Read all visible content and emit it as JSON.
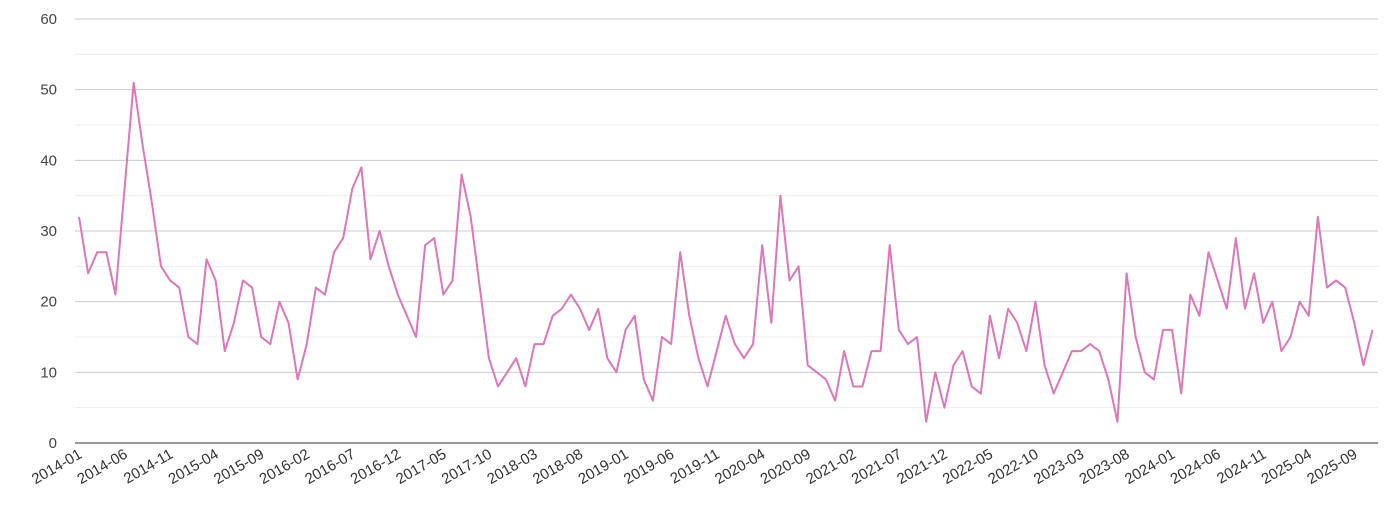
{
  "chart_data": {
    "type": "line",
    "title": "",
    "xlabel": "",
    "ylabel": "",
    "ylim": [
      0,
      60
    ],
    "y_ticks": [
      0,
      10,
      20,
      30,
      40,
      50,
      60
    ],
    "grid": true,
    "legend": "none",
    "colors": {
      "line": "#dd77b8",
      "grid_major": "#cccccc",
      "grid_minor": "#ececec",
      "axis": "#333333"
    },
    "x_tick_labels": [
      "2014-01",
      "2014-06",
      "2014-11",
      "2015-04",
      "2015-09",
      "2016-02",
      "2016-07",
      "2016-12",
      "2017-05",
      "2017-10",
      "2018-03",
      "2018-08",
      "2019-01",
      "2019-06",
      "2019-11",
      "2020-04",
      "2020-09",
      "2021-02",
      "2021-07",
      "2021-12",
      "2022-05",
      "2022-10",
      "2023-03",
      "2023-08",
      "2024-01",
      "2024-06",
      "2024-11",
      "2025-04",
      "2025-09"
    ],
    "series": [
      {
        "start": "2014-01",
        "values": [
          32,
          24,
          27,
          27,
          21,
          36,
          51,
          42,
          34,
          25,
          23,
          22,
          15,
          14,
          26,
          23,
          13,
          17,
          23,
          22,
          15,
          14,
          20,
          17,
          9,
          14,
          22,
          21,
          27,
          29,
          36,
          39,
          26,
          30,
          25,
          21,
          18,
          15,
          28,
          29,
          21,
          23,
          38,
          32,
          22,
          12,
          8,
          10,
          12,
          8,
          14,
          14,
          18,
          19,
          21,
          19,
          16,
          19,
          12,
          10,
          16,
          18,
          9,
          6,
          15,
          14,
          27,
          18,
          12,
          8,
          13,
          18,
          14,
          12,
          14,
          28,
          17,
          35,
          23,
          25,
          11,
          10,
          9,
          6,
          13,
          8,
          8,
          13,
          13,
          28,
          16,
          14,
          15,
          3,
          10,
          5,
          11,
          13,
          8,
          7,
          18,
          12,
          19,
          17,
          13,
          20,
          11,
          7,
          10,
          13,
          13,
          14,
          13,
          9,
          3,
          24,
          15,
          10,
          9,
          16,
          16,
          7,
          21,
          18,
          27,
          23,
          19,
          29,
          19,
          24,
          17,
          20,
          13,
          15,
          20,
          18,
          32,
          22,
          23,
          22,
          17,
          11,
          16
        ]
      }
    ]
  }
}
